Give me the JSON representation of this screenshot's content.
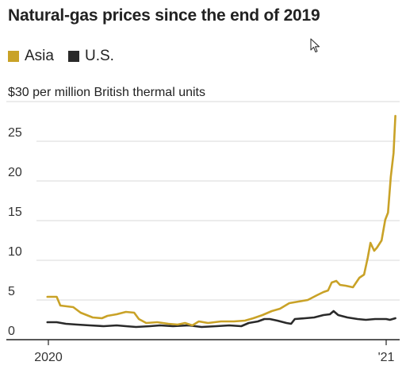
{
  "chart_data": {
    "type": "line",
    "title": "Natural-gas prices since the end of 2019",
    "units_label": "$30 per million British thermal units",
    "ylim": [
      0,
      30
    ],
    "yticks": [
      0,
      5,
      10,
      15,
      20,
      25
    ],
    "ytick_labels": [
      "0",
      "5",
      "10",
      "15",
      "20",
      "25"
    ],
    "xlim": [
      "2019-12-31",
      "2021-01-15"
    ],
    "xticks": [
      {
        "date": "2020-01-01",
        "label": "2020"
      },
      {
        "date": "2021-01-01",
        "label": "'21"
      }
    ],
    "grid": true,
    "legend_position": "top-left",
    "series": [
      {
        "name": "Asia",
        "color": "#c9a227",
        "points": [
          [
            "2019-12-31",
            5.4
          ],
          [
            "2020-01-10",
            5.4
          ],
          [
            "2020-01-14",
            4.3
          ],
          [
            "2020-01-28",
            4.1
          ],
          [
            "2020-02-05",
            3.4
          ],
          [
            "2020-02-18",
            2.8
          ],
          [
            "2020-02-28",
            2.7
          ],
          [
            "2020-03-05",
            3.0
          ],
          [
            "2020-03-15",
            3.2
          ],
          [
            "2020-03-25",
            3.5
          ],
          [
            "2020-04-03",
            3.4
          ],
          [
            "2020-04-08",
            2.6
          ],
          [
            "2020-04-16",
            2.1
          ],
          [
            "2020-04-28",
            2.2
          ],
          [
            "2020-05-10",
            2.0
          ],
          [
            "2020-05-20",
            1.9
          ],
          [
            "2020-05-28",
            2.1
          ],
          [
            "2020-06-05",
            1.8
          ],
          [
            "2020-06-12",
            2.3
          ],
          [
            "2020-06-22",
            2.1
          ],
          [
            "2020-07-06",
            2.3
          ],
          [
            "2020-07-20",
            2.3
          ],
          [
            "2020-08-01",
            2.4
          ],
          [
            "2020-08-10",
            2.7
          ],
          [
            "2020-08-20",
            3.1
          ],
          [
            "2020-08-30",
            3.6
          ],
          [
            "2020-09-08",
            3.9
          ],
          [
            "2020-09-18",
            4.6
          ],
          [
            "2020-09-28",
            4.8
          ],
          [
            "2020-10-08",
            5.0
          ],
          [
            "2020-10-18",
            5.6
          ],
          [
            "2020-10-25",
            6.0
          ],
          [
            "2020-10-30",
            6.2
          ],
          [
            "2020-11-03",
            7.2
          ],
          [
            "2020-11-08",
            7.4
          ],
          [
            "2020-11-12",
            6.9
          ],
          [
            "2020-11-18",
            6.8
          ],
          [
            "2020-11-26",
            6.6
          ],
          [
            "2020-12-03",
            7.8
          ],
          [
            "2020-12-08",
            8.2
          ],
          [
            "2020-12-12",
            10.3
          ],
          [
            "2020-12-15",
            12.2
          ],
          [
            "2020-12-19",
            11.2
          ],
          [
            "2020-12-22",
            11.6
          ],
          [
            "2020-12-27",
            12.5
          ],
          [
            "2020-12-31",
            15.1
          ],
          [
            "2021-01-03",
            16.0
          ],
          [
            "2021-01-06",
            20.5
          ],
          [
            "2021-01-09",
            23.5
          ],
          [
            "2021-01-11",
            28.2
          ]
        ]
      },
      {
        "name": "U.S.",
        "color": "#2a2a2a",
        "points": [
          [
            "2019-12-31",
            2.2
          ],
          [
            "2020-01-10",
            2.2
          ],
          [
            "2020-01-20",
            2.0
          ],
          [
            "2020-02-01",
            1.9
          ],
          [
            "2020-02-15",
            1.8
          ],
          [
            "2020-03-01",
            1.7
          ],
          [
            "2020-03-15",
            1.8
          ],
          [
            "2020-03-25",
            1.7
          ],
          [
            "2020-04-05",
            1.6
          ],
          [
            "2020-04-20",
            1.7
          ],
          [
            "2020-05-01",
            1.8
          ],
          [
            "2020-05-15",
            1.7
          ],
          [
            "2020-06-01",
            1.8
          ],
          [
            "2020-06-15",
            1.6
          ],
          [
            "2020-07-01",
            1.7
          ],
          [
            "2020-07-15",
            1.8
          ],
          [
            "2020-07-28",
            1.7
          ],
          [
            "2020-08-05",
            2.1
          ],
          [
            "2020-08-15",
            2.3
          ],
          [
            "2020-08-22",
            2.6
          ],
          [
            "2020-08-28",
            2.6
          ],
          [
            "2020-09-05",
            2.4
          ],
          [
            "2020-09-15",
            2.1
          ],
          [
            "2020-09-20",
            2.0
          ],
          [
            "2020-09-24",
            2.6
          ],
          [
            "2020-10-05",
            2.7
          ],
          [
            "2020-10-15",
            2.8
          ],
          [
            "2020-10-25",
            3.1
          ],
          [
            "2020-11-01",
            3.2
          ],
          [
            "2020-11-05",
            3.6
          ],
          [
            "2020-11-10",
            3.1
          ],
          [
            "2020-11-20",
            2.8
          ],
          [
            "2020-12-01",
            2.6
          ],
          [
            "2020-12-10",
            2.5
          ],
          [
            "2020-12-20",
            2.6
          ],
          [
            "2021-01-01",
            2.6
          ],
          [
            "2021-01-05",
            2.5
          ],
          [
            "2021-01-11",
            2.7
          ]
        ]
      }
    ]
  }
}
